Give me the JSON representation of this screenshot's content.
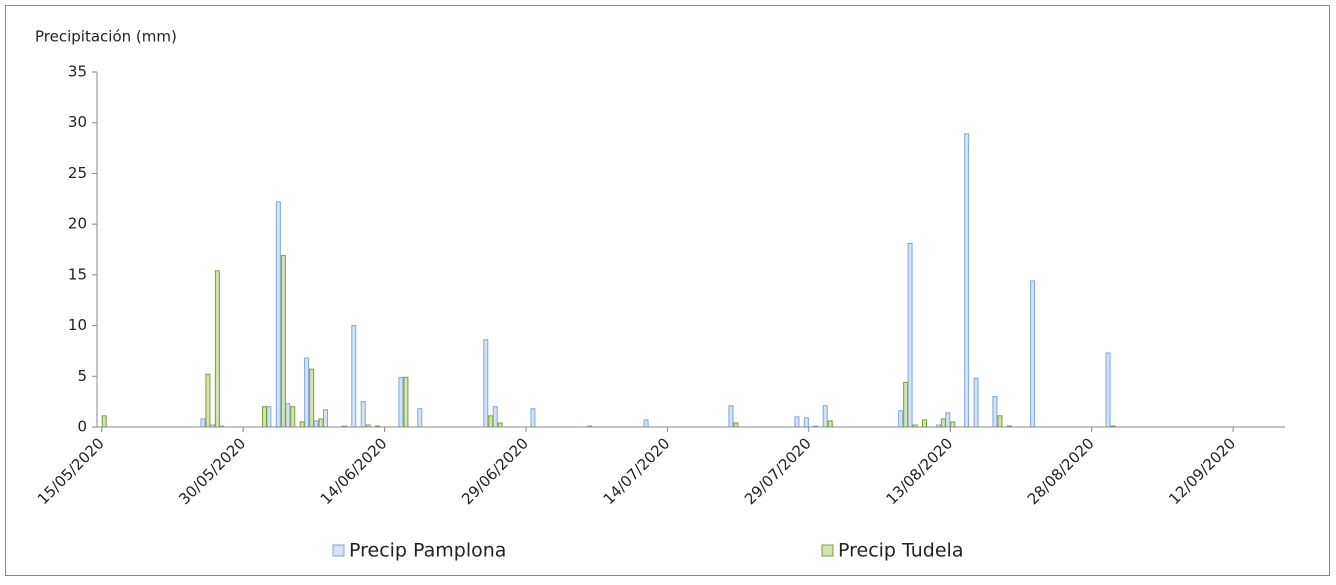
{
  "chart_data": {
    "type": "bar",
    "y_label": "Precipitación (mm)",
    "x": [
      "15/05/2020",
      "26/05/2020",
      "27/05/2020",
      "28/05/2020",
      "01/06/2020",
      "02/06/2020",
      "03/06/2020",
      "04/06/2020",
      "05/06/2020",
      "06/06/2020",
      "07/06/2020",
      "08/06/2020",
      "10/06/2020",
      "11/06/2020",
      "12/06/2020",
      "13/06/2020",
      "16/06/2020",
      "18/06/2020",
      "25/06/2020",
      "26/06/2020",
      "30/06/2020",
      "06/07/2020",
      "12/07/2020",
      "21/07/2020",
      "28/07/2020",
      "29/07/2020",
      "30/07/2020",
      "31/07/2020",
      "08/08/2020",
      "09/08/2020",
      "10/08/2020",
      "12/08/2020",
      "13/08/2020",
      "15/08/2020",
      "16/08/2020",
      "18/08/2020",
      "19/08/2020",
      "22/08/2020",
      "30/08/2020"
    ],
    "series": [
      {
        "name": "Precip Pamplona",
        "color": "#7fa6d6",
        "values": [
          0,
          0.8,
          0.2,
          0.1,
          0,
          2.0,
          22.2,
          2.3,
          0,
          6.8,
          0.6,
          1.7,
          0.1,
          10.0,
          2.5,
          0,
          4.9,
          1.8,
          8.6,
          2.0,
          1.8,
          0.1,
          0.7,
          2.1,
          1.0,
          0.9,
          0.1,
          2.1,
          1.6,
          18.1,
          0,
          0.2,
          1.4,
          28.9,
          4.8,
          3.0,
          0,
          14.4,
          7.3
        ]
      },
      {
        "name": "Precip Tudela",
        "color": "#77a03b",
        "values": [
          1.1,
          5.2,
          15.4,
          0,
          2.0,
          0,
          16.9,
          2.0,
          0.5,
          5.7,
          0.8,
          0,
          0,
          0,
          0.2,
          0.1,
          4.9,
          0,
          1.1,
          0.4,
          0,
          0,
          0,
          0.4,
          0,
          0,
          0,
          0.6,
          4.4,
          0.2,
          0.7,
          0.8,
          0.5,
          0,
          0,
          1.1,
          0.1,
          0,
          0.1
        ]
      }
    ],
    "xlim": [
      "15/05/2020",
      "17/09/2020"
    ],
    "xticks": [
      "15/05/2020",
      "30/05/2020",
      "14/06/2020",
      "29/06/2020",
      "14/07/2020",
      "29/07/2020",
      "13/08/2020",
      "28/08/2020",
      "12/09/2020"
    ],
    "ylim": [
      0,
      35
    ],
    "yticks": [
      0,
      5,
      10,
      15,
      20,
      25,
      30,
      35
    ],
    "grid": false
  }
}
